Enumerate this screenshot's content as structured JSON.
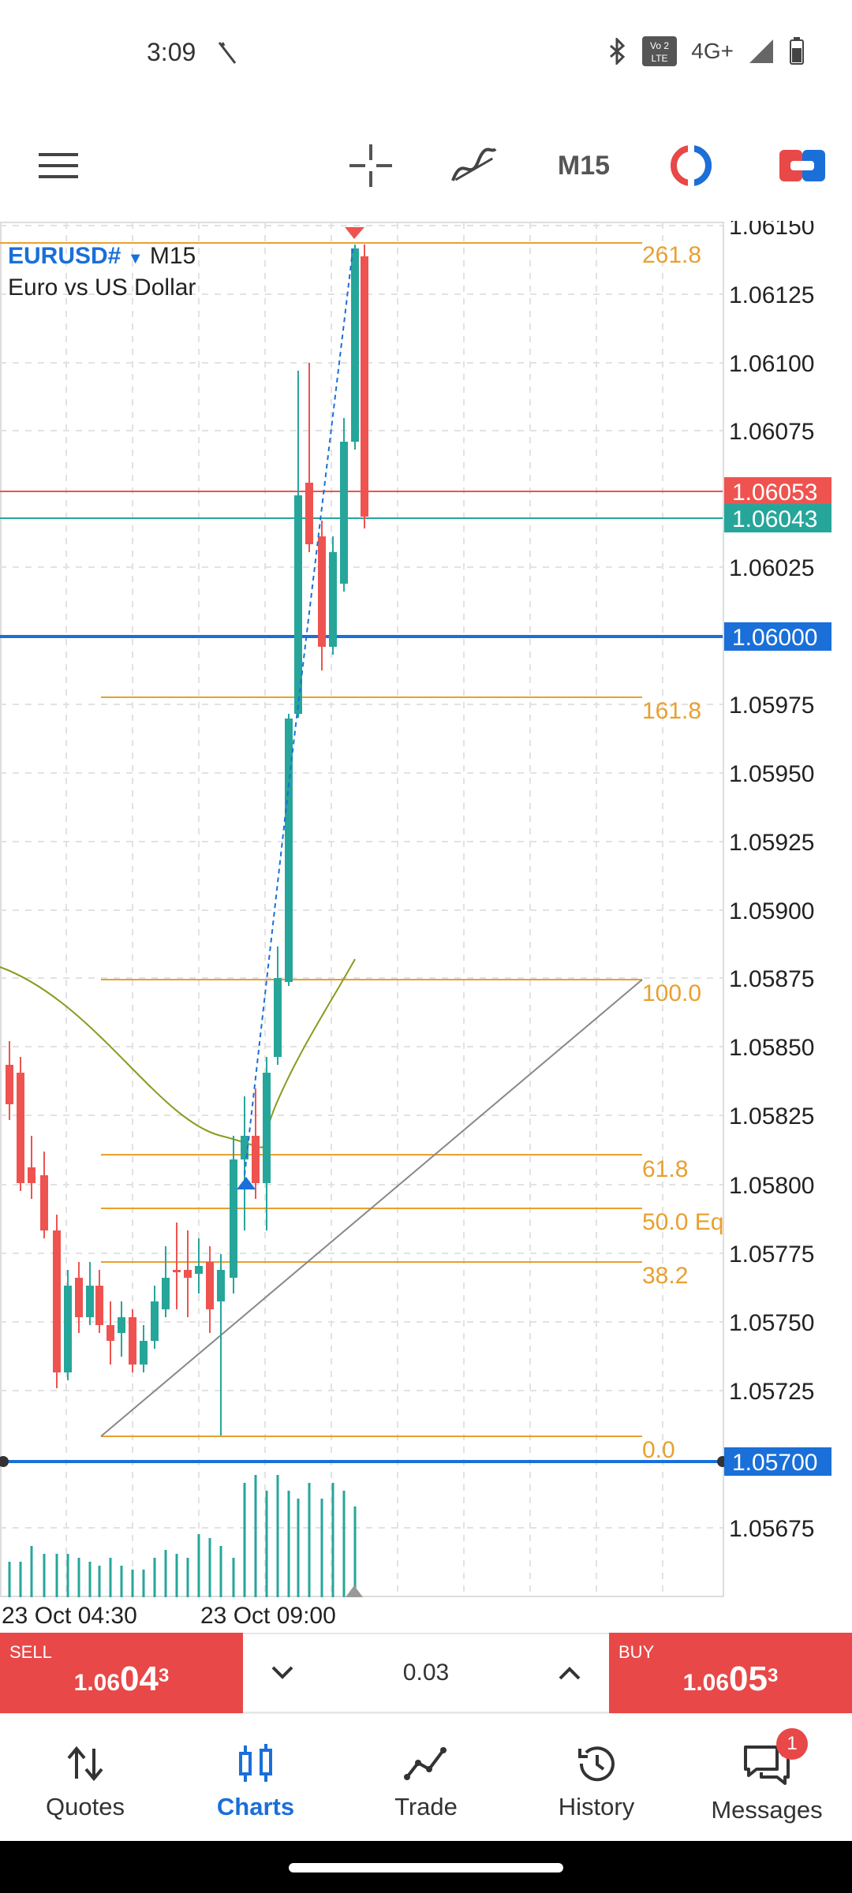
{
  "status": {
    "time": "3:09",
    "network": "4G+",
    "volte": "Vo LTE 2"
  },
  "toolbar": {
    "timeframe": "M15"
  },
  "chart": {
    "symbol": "EURUSD#",
    "timeframe": "M15",
    "description": "Euro vs US Dollar",
    "price_labels": [
      "1.06150",
      "1.06125",
      "1.06100",
      "1.06075",
      "1.06025",
      "1.05975",
      "1.05950",
      "1.05925",
      "1.05900",
      "1.05875",
      "1.05850",
      "1.05825",
      "1.05800",
      "1.05775",
      "1.05750",
      "1.05725",
      "1.05675"
    ],
    "bid_tag": "1.06043",
    "ask_tag": "1.06053",
    "level_tag_1": "1.06000",
    "level_tag_2": "1.05700",
    "fib_labels": [
      "261.8",
      "161.8",
      "100.0",
      "61.8",
      "50.0 Eq",
      "38.2",
      "0.0"
    ],
    "time_labels": [
      "23 Oct 04:30",
      "23 Oct 09:00"
    ],
    "colors": {
      "bull": "#26a69a",
      "bear": "#ef5350",
      "fib": "#e8a030",
      "level": "#1a6fd8"
    }
  },
  "trade": {
    "sell_label": "SELL",
    "sell_price_small": "1.06",
    "sell_price_big": "04",
    "sell_price_sup": "3",
    "buy_label": "BUY",
    "buy_price_small": "1.06",
    "buy_price_big": "05",
    "buy_price_sup": "3",
    "volume": "0.03"
  },
  "nav": [
    {
      "label": "Quotes",
      "icon": "quotes-icon"
    },
    {
      "label": "Charts",
      "icon": "charts-icon"
    },
    {
      "label": "Trade",
      "icon": "trade-icon"
    },
    {
      "label": "History",
      "icon": "history-icon"
    },
    {
      "label": "Messages",
      "icon": "messages-icon",
      "badge": "1"
    }
  ]
}
